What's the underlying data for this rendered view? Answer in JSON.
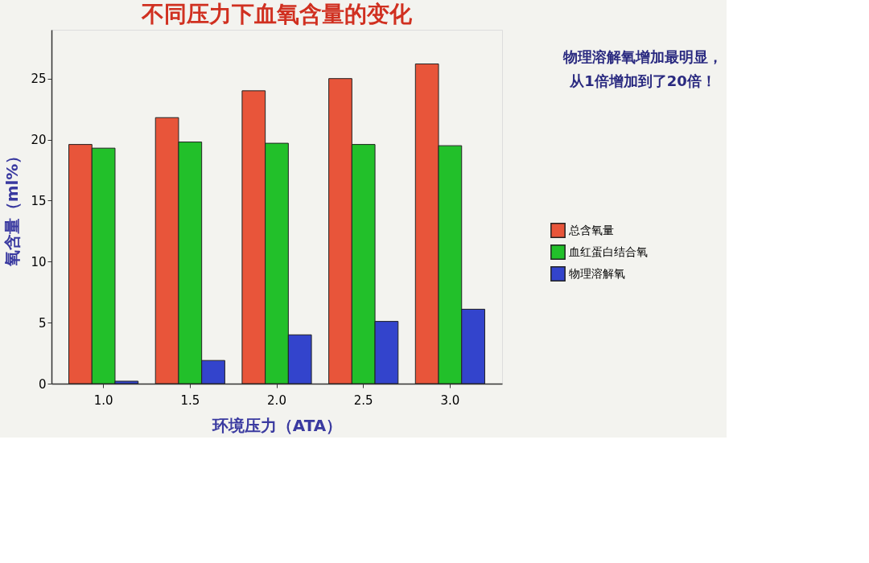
{
  "chart_data": {
    "type": "bar",
    "title": "不同压力下血氧含量的变化",
    "xlabel": "环境压力（ATA）",
    "ylabel": "氧含量（ml%）",
    "categories": [
      "1.0",
      "1.5",
      "2.0",
      "2.5",
      "3.0"
    ],
    "series": [
      {
        "name": "总含氧量",
        "color": "#e8553a",
        "values": [
          19.6,
          21.8,
          24.0,
          25.0,
          26.2
        ]
      },
      {
        "name": "血红蛋白结合氧",
        "color": "#22c02a",
        "values": [
          19.3,
          19.8,
          19.7,
          19.6,
          19.5
        ]
      },
      {
        "name": "物理溶解氧",
        "color": "#3344cc",
        "values": [
          0.2,
          1.9,
          4.0,
          5.1,
          6.1
        ]
      }
    ],
    "ylim": [
      0,
      29
    ],
    "yticks": [
      0,
      5,
      10,
      15,
      20,
      25
    ],
    "grid": false,
    "legend": "right",
    "annotations": [
      "物理溶解氧增加最明显，",
      "从1倍增加到了20倍！"
    ]
  }
}
